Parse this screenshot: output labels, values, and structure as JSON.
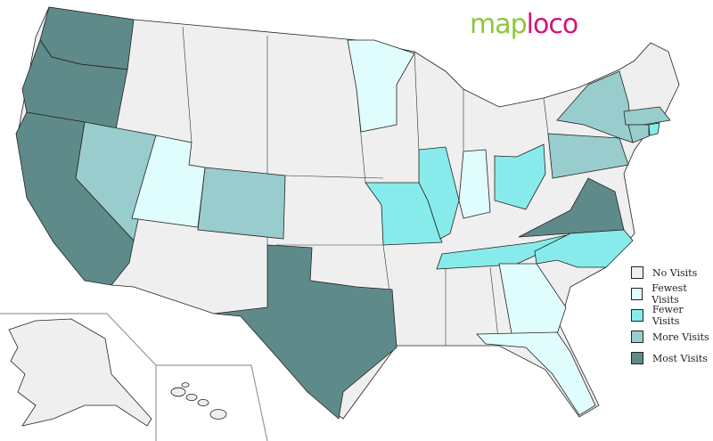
{
  "logo": {
    "part1": "map",
    "part2": "loco"
  },
  "legend": [
    {
      "label": "No Visits",
      "color": "#efefef"
    },
    {
      "label": "Fewest Visits",
      "color": "#e0fdfd"
    },
    {
      "label": "Fewer Visits",
      "color": "#87ebeb"
    },
    {
      "label": "More Visits",
      "color": "#99cccc"
    },
    {
      "label": "Most Visits",
      "color": "#5f8a8a"
    }
  ],
  "states": {
    "WA": 4,
    "OR": 4,
    "CA": 4,
    "TX": 4,
    "VA": 4,
    "NV": 3,
    "CO": 3,
    "NY": 3,
    "PA": 3,
    "MA": 3,
    "CT": 3,
    "MO": 2,
    "IL": 2,
    "OH": 2,
    "TN": 2,
    "NC": 2,
    "RI": 2,
    "UT": 1,
    "MN": 1,
    "IN": 1,
    "GA": 1,
    "FL": 1
  }
}
